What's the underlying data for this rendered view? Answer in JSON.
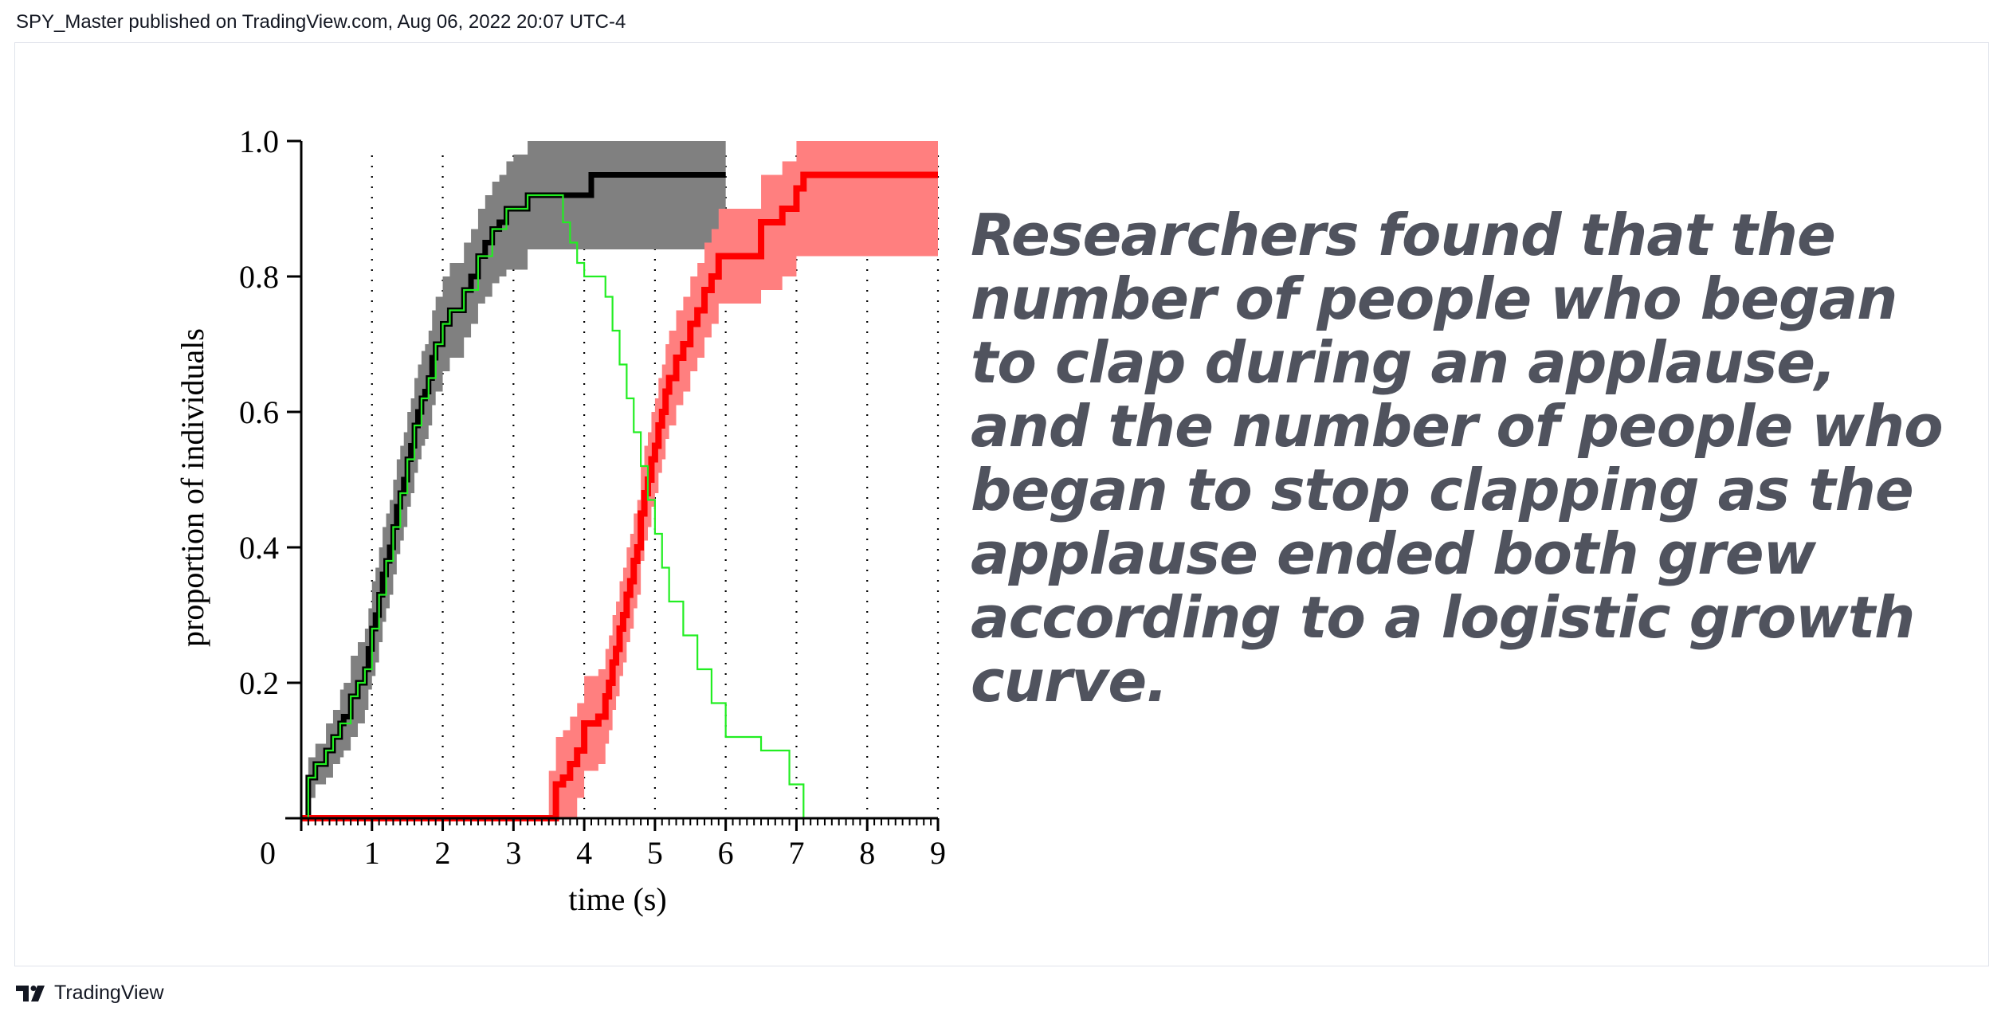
{
  "header": {
    "text": "SPY_Master published on TradingView.com, Aug 06, 2022 20:07 UTC-4"
  },
  "headline": "Researchers found that the number of people who began to clap during an applause, and the number of people who began to stop clapping as the applause ended both grew according to a logistic growth curve.",
  "footer": {
    "brand": "TradingView",
    "logo_icon": "tradingview-logo-icon"
  },
  "colors": {
    "start_line": "#000000",
    "start_band": "#808080",
    "stop_line": "#ff0000",
    "stop_band": "#ff7f7f",
    "diff_line": "#22ee22",
    "headline": "#50535e"
  },
  "chart_data": {
    "type": "line",
    "xlabel": "time (s)",
    "ylabel": "proportion of individuals",
    "xlim": [
      0,
      9
    ],
    "ylim": [
      0,
      1
    ],
    "x_ticks": [
      "0",
      "1",
      "2",
      "3",
      "4",
      "5",
      "6",
      "7",
      "8",
      "9"
    ],
    "y_ticks": [
      "0.2",
      "0.4",
      "0.6",
      "0.8",
      "1.0"
    ],
    "grid": "vertical dotted at each second",
    "series": [
      {
        "name": "",
        "role": "start clapping (black line, grey confidence band)",
        "x": [
          0,
          0.1,
          0.2,
          0.35,
          0.45,
          0.55,
          0.6,
          0.7,
          0.8,
          0.9,
          0.95,
          1.0,
          1.05,
          1.1,
          1.15,
          1.2,
          1.25,
          1.3,
          1.35,
          1.4,
          1.45,
          1.5,
          1.55,
          1.6,
          1.65,
          1.7,
          1.75,
          1.8,
          1.85,
          1.9,
          2.0,
          2.1,
          2.3,
          2.4,
          2.5,
          2.6,
          2.7,
          2.8,
          2.9,
          3.0,
          3.2,
          3.5,
          4.1,
          6.0
        ],
        "y": [
          0,
          0.06,
          0.08,
          0.1,
          0.12,
          0.14,
          0.15,
          0.18,
          0.2,
          0.22,
          0.25,
          0.28,
          0.3,
          0.33,
          0.36,
          0.38,
          0.4,
          0.43,
          0.46,
          0.48,
          0.5,
          0.53,
          0.55,
          0.58,
          0.6,
          0.62,
          0.63,
          0.65,
          0.68,
          0.7,
          0.73,
          0.75,
          0.78,
          0.8,
          0.83,
          0.85,
          0.87,
          0.88,
          0.9,
          0.9,
          0.92,
          0.92,
          0.95,
          0.95
        ],
        "band_lower": [
          0,
          0.03,
          0.05,
          0.06,
          0.08,
          0.09,
          0.1,
          0.12,
          0.14,
          0.16,
          0.19,
          0.21,
          0.23,
          0.26,
          0.29,
          0.31,
          0.33,
          0.36,
          0.39,
          0.41,
          0.43,
          0.46,
          0.48,
          0.51,
          0.53,
          0.55,
          0.56,
          0.58,
          0.61,
          0.63,
          0.66,
          0.68,
          0.71,
          0.73,
          0.76,
          0.77,
          0.79,
          0.8,
          0.81,
          0.81,
          0.84,
          0.84,
          0.84,
          0.84
        ],
        "band_upper": [
          0,
          0.09,
          0.11,
          0.14,
          0.16,
          0.19,
          0.2,
          0.24,
          0.26,
          0.28,
          0.31,
          0.35,
          0.37,
          0.4,
          0.43,
          0.45,
          0.47,
          0.5,
          0.53,
          0.55,
          0.57,
          0.6,
          0.62,
          0.65,
          0.67,
          0.69,
          0.7,
          0.72,
          0.75,
          0.77,
          0.8,
          0.82,
          0.85,
          0.87,
          0.9,
          0.92,
          0.94,
          0.95,
          0.97,
          0.98,
          1.0,
          1.0,
          1.0,
          1.0
        ]
      },
      {
        "name": "",
        "role": "stop clapping (red line, pink confidence band)",
        "x": [
          0,
          3.5,
          3.6,
          3.7,
          3.8,
          3.9,
          4.0,
          4.2,
          4.3,
          4.35,
          4.4,
          4.45,
          4.5,
          4.55,
          4.6,
          4.65,
          4.7,
          4.75,
          4.8,
          4.85,
          4.9,
          4.95,
          5.0,
          5.05,
          5.1,
          5.15,
          5.2,
          5.3,
          5.4,
          5.5,
          5.6,
          5.7,
          5.8,
          5.9,
          6.0,
          6.5,
          6.6,
          6.8,
          7.0,
          7.1,
          9.0
        ],
        "y": [
          0,
          0,
          0.05,
          0.06,
          0.08,
          0.1,
          0.14,
          0.15,
          0.18,
          0.2,
          0.23,
          0.25,
          0.28,
          0.3,
          0.33,
          0.35,
          0.38,
          0.4,
          0.45,
          0.48,
          0.5,
          0.53,
          0.55,
          0.58,
          0.6,
          0.63,
          0.65,
          0.68,
          0.7,
          0.73,
          0.75,
          0.78,
          0.8,
          0.83,
          0.83,
          0.88,
          0.88,
          0.9,
          0.93,
          0.95,
          0.95
        ],
        "band_lower": [
          0,
          0,
          0,
          0,
          0,
          0.03,
          0.07,
          0.08,
          0.11,
          0.13,
          0.16,
          0.18,
          0.21,
          0.23,
          0.26,
          0.28,
          0.31,
          0.33,
          0.38,
          0.41,
          0.43,
          0.46,
          0.48,
          0.51,
          0.53,
          0.56,
          0.58,
          0.61,
          0.63,
          0.66,
          0.68,
          0.71,
          0.73,
          0.76,
          0.76,
          0.78,
          0.78,
          0.8,
          0.83,
          0.83,
          0.83
        ],
        "band_upper": [
          0,
          0.07,
          0.12,
          0.13,
          0.15,
          0.17,
          0.21,
          0.22,
          0.25,
          0.27,
          0.3,
          0.32,
          0.35,
          0.37,
          0.4,
          0.42,
          0.45,
          0.47,
          0.52,
          0.55,
          0.57,
          0.6,
          0.62,
          0.65,
          0.67,
          0.7,
          0.72,
          0.75,
          0.77,
          0.8,
          0.82,
          0.85,
          0.87,
          0.9,
          0.9,
          0.95,
          0.95,
          0.97,
          1.0,
          1.0,
          1.0
        ]
      },
      {
        "name": "",
        "role": "difference (thin green line)",
        "x": [
          0,
          0.1,
          0.2,
          0.35,
          0.45,
          0.55,
          0.7,
          0.8,
          0.9,
          1.0,
          1.1,
          1.2,
          1.3,
          1.4,
          1.5,
          1.6,
          1.7,
          1.8,
          1.9,
          2.0,
          2.1,
          2.3,
          2.5,
          2.7,
          2.9,
          3.2,
          3.5,
          3.7,
          3.8,
          3.9,
          4.0,
          4.1,
          4.2,
          4.3,
          4.4,
          4.5,
          4.6,
          4.7,
          4.8,
          4.9,
          5.0,
          5.1,
          5.2,
          5.4,
          5.6,
          5.8,
          6.0,
          6.5,
          6.9,
          7.1,
          9.0
        ],
        "y": [
          0,
          0.06,
          0.08,
          0.1,
          0.12,
          0.14,
          0.18,
          0.2,
          0.22,
          0.28,
          0.33,
          0.38,
          0.43,
          0.48,
          0.53,
          0.58,
          0.62,
          0.65,
          0.7,
          0.73,
          0.75,
          0.78,
          0.83,
          0.87,
          0.9,
          0.92,
          0.92,
          0.88,
          0.85,
          0.82,
          0.8,
          0.8,
          0.8,
          0.77,
          0.72,
          0.67,
          0.62,
          0.57,
          0.52,
          0.47,
          0.42,
          0.37,
          0.32,
          0.27,
          0.22,
          0.17,
          0.12,
          0.1,
          0.05,
          0.0,
          0.0
        ]
      }
    ]
  }
}
